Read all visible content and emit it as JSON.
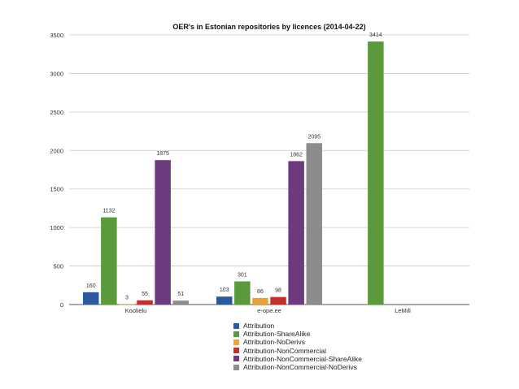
{
  "chart_data": {
    "type": "bar",
    "title": "OER's in Estonian repositories by licences (2014-04-22)",
    "xlabel": "",
    "ylabel": "",
    "ylim": [
      0,
      3500
    ],
    "yticks": [
      0,
      500,
      1000,
      1500,
      2000,
      2500,
      3000,
      3500
    ],
    "grid": true,
    "legend_position": "bottom",
    "categories": [
      "Koolielu",
      "e-ope.ee",
      "LeMill"
    ],
    "series": [
      {
        "name": "Attribution",
        "color": "#2b5a9c",
        "values": [
          160,
          103,
          null
        ]
      },
      {
        "name": "Attribution-ShareAlike",
        "color": "#5a9a3c",
        "values": [
          1132,
          301,
          3414
        ]
      },
      {
        "name": "Attribution-NoDerivs",
        "color": "#e8a23a",
        "values": [
          3,
          86,
          null
        ]
      },
      {
        "name": "Attribution-NonCommercial",
        "color": "#c0312e",
        "values": [
          55,
          98,
          null
        ]
      },
      {
        "name": "Attribution-NonCommercial-ShareAlike",
        "color": "#6e3a7e",
        "values": [
          1875,
          1862,
          null
        ]
      },
      {
        "name": "Attribution-NonCommercial-NoDerivs",
        "color": "#8c8c8c",
        "values": [
          51,
          2095,
          null
        ]
      }
    ]
  }
}
